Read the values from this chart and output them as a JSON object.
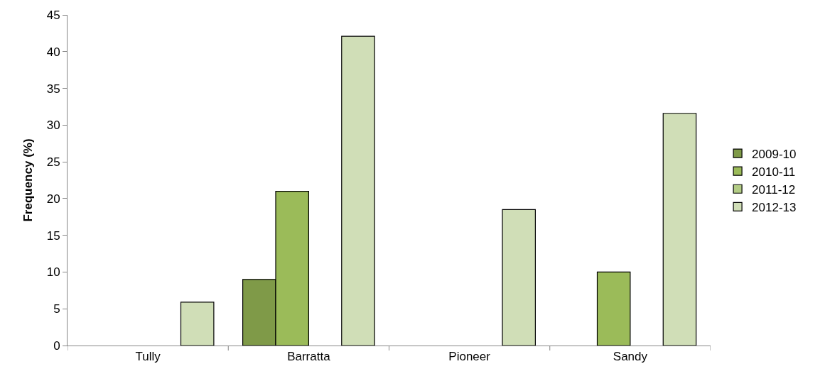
{
  "chart_data": {
    "type": "bar",
    "ylabel": "Frequency (%)",
    "categories": [
      "Tully",
      "Barratta",
      "Pioneer",
      "Sandy"
    ],
    "series": [
      {
        "name": "2009-10",
        "color": "#7f9a48",
        "values": [
          null,
          9,
          null,
          null
        ]
      },
      {
        "name": "2010-11",
        "color": "#9bbb59",
        "values": [
          null,
          21,
          null,
          10
        ]
      },
      {
        "name": "2011-12",
        "color": "#b3cc85",
        "values": [
          null,
          null,
          null,
          null
        ]
      },
      {
        "name": "2012-13",
        "color": "#d0deb7",
        "values": [
          5.9,
          42.1,
          18.5,
          31.6
        ]
      }
    ],
    "ylim": [
      0,
      45
    ],
    "yticks": [
      0,
      5,
      10,
      15,
      20,
      25,
      30,
      35,
      40,
      45
    ],
    "legend": "right"
  }
}
